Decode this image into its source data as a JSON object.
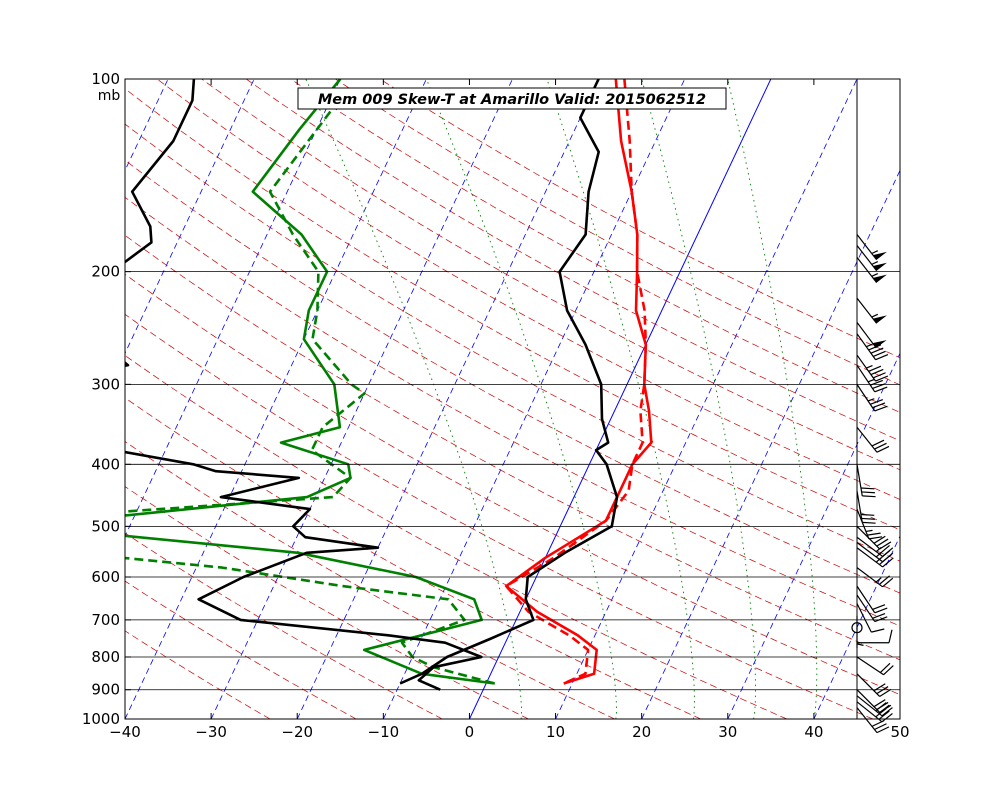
{
  "chart_data": {
    "type": "line",
    "title": "Mem 009  Skew-T at Amarillo   Valid: 2015062512",
    "xlabel": "",
    "ylabel": "",
    "pressure_unit": "mb",
    "skew_factor": 35,
    "xlim": [
      -40,
      50
    ],
    "plim": [
      1000,
      100
    ],
    "xticks": [
      -40,
      -30,
      -20,
      -10,
      0,
      10,
      20,
      30,
      40,
      50
    ],
    "pticks": [
      100,
      200,
      300,
      400,
      500,
      600,
      700,
      800,
      900,
      1000
    ],
    "isobars": [
      200,
      300,
      400,
      500,
      600,
      700,
      800,
      900
    ],
    "isotherms": [
      -100,
      -90,
      -80,
      -70,
      -60,
      -50,
      -40,
      -30,
      -20,
      -10,
      10,
      20,
      30,
      40,
      50
    ],
    "zero_isotherm": 0,
    "dry_adiabats_theta_K": [
      250,
      260,
      270,
      280,
      290,
      300,
      310,
      320,
      330,
      340,
      350,
      360,
      370,
      380,
      390,
      400,
      410,
      420,
      430,
      440
    ],
    "mixing_ratio_lines": [
      {
        "sfc_T": 6,
        "top_T": -54
      },
      {
        "sfc_T": 17,
        "top_T": -40
      },
      {
        "sfc_T": 26,
        "top_T": -26
      },
      {
        "sfc_T": 33,
        "top_T": -15
      },
      {
        "sfc_T": 40,
        "top_T": -5
      }
    ],
    "colors": {
      "temperature": "#ff0000",
      "dewpoint": "#008000",
      "member_profile": "#000000",
      "isobar": "#000000",
      "isotherm": "#0000ff",
      "dry_adiabat": "#cc0000",
      "mixing_ratio": "#008000"
    },
    "series": [
      {
        "role": "temperature",
        "style": "solid",
        "points": [
          [
            -18,
            100
          ],
          [
            -14,
            125
          ],
          [
            -10,
            150
          ],
          [
            -7,
            175
          ],
          [
            -5,
            200
          ],
          [
            -3,
            230
          ],
          [
            0,
            260
          ],
          [
            2,
            300
          ],
          [
            4,
            330
          ],
          [
            6,
            370
          ],
          [
            5,
            400
          ],
          [
            5,
            440
          ],
          [
            5,
            490
          ],
          [
            0,
            560
          ],
          [
            -3,
            620
          ],
          [
            2,
            680
          ],
          [
            8,
            740
          ],
          [
            11,
            780
          ],
          [
            12,
            850
          ],
          [
            9,
            880
          ]
        ]
      },
      {
        "role": "temperature",
        "style": "dashed",
        "points": [
          [
            -17,
            100
          ],
          [
            -13,
            125
          ],
          [
            -10,
            150
          ],
          [
            -7,
            175
          ],
          [
            -5,
            200
          ],
          [
            -2,
            230
          ],
          [
            0,
            260
          ],
          [
            2,
            300
          ],
          [
            3,
            330
          ],
          [
            5,
            370
          ],
          [
            5,
            400
          ],
          [
            6,
            440
          ],
          [
            5,
            490
          ],
          [
            1,
            560
          ],
          [
            -3,
            620
          ],
          [
            1,
            680
          ],
          [
            7,
            740
          ],
          [
            10,
            780
          ],
          [
            11,
            850
          ],
          [
            9,
            880
          ]
        ]
      },
      {
        "role": "dewpoint",
        "style": "solid",
        "points": [
          [
            -50,
            100
          ],
          [
            -52,
            120
          ],
          [
            -54,
            150
          ],
          [
            -46,
            175
          ],
          [
            -41,
            200
          ],
          [
            -41,
            230
          ],
          [
            -40,
            255
          ],
          [
            -34,
            300
          ],
          [
            -31,
            350
          ],
          [
            -37,
            370
          ],
          [
            -28,
            400
          ],
          [
            -27,
            420
          ],
          [
            -31,
            450
          ],
          [
            -63,
            500
          ],
          [
            -55,
            510
          ],
          [
            -29,
            550
          ],
          [
            -14,
            600
          ],
          [
            -6,
            650
          ],
          [
            -4,
            700
          ],
          [
            -16,
            780
          ],
          [
            -8,
            850
          ],
          [
            1,
            880
          ]
        ]
      },
      {
        "role": "dewpoint",
        "style": "dashed",
        "points": [
          [
            -49,
            108
          ],
          [
            -52,
            150
          ],
          [
            -47,
            175
          ],
          [
            -42,
            200
          ],
          [
            -40,
            230
          ],
          [
            -39,
            255
          ],
          [
            -32,
            300
          ],
          [
            -30,
            310
          ],
          [
            -33,
            350
          ],
          [
            -33,
            380
          ],
          [
            -27,
            420
          ],
          [
            -28,
            450
          ],
          [
            -57,
            480
          ],
          [
            -80,
            500
          ],
          [
            -78,
            510
          ],
          [
            -68,
            530
          ],
          [
            -37,
            580
          ],
          [
            -22,
            620
          ],
          [
            -9,
            650
          ],
          [
            -6,
            700
          ],
          [
            -12,
            760
          ],
          [
            -10,
            800
          ],
          [
            -7,
            830
          ],
          [
            1,
            880
          ]
        ]
      },
      {
        "role": "member_profile_1",
        "style": "solid",
        "points": [
          [
            -20,
            100
          ],
          [
            -20,
            115
          ],
          [
            -16,
            130
          ],
          [
            -15,
            150
          ],
          [
            -13,
            175
          ],
          [
            -14,
            200
          ],
          [
            -11,
            230
          ],
          [
            -7,
            260
          ],
          [
            -3,
            300
          ],
          [
            -1,
            340
          ],
          [
            1,
            370
          ],
          [
            0,
            380
          ],
          [
            2,
            400
          ],
          [
            5,
            450
          ],
          [
            6,
            500
          ],
          [
            2,
            550
          ],
          [
            -1,
            600
          ],
          [
            0,
            650
          ],
          [
            2,
            700
          ],
          [
            -2,
            750
          ],
          [
            -6,
            800
          ],
          [
            -8,
            850
          ],
          [
            -10,
            880
          ]
        ]
      },
      {
        "role": "member_profile_2",
        "style": "solid",
        "points": [
          [
            -67,
            100
          ],
          [
            -66,
            108
          ],
          [
            -66,
            125
          ],
          [
            -68,
            150
          ],
          [
            -64,
            170
          ],
          [
            -63,
            180
          ],
          [
            -66,
            200
          ],
          [
            -68,
            210
          ],
          [
            -65,
            225
          ],
          [
            -63,
            240
          ],
          [
            -63,
            255
          ],
          [
            -61,
            270
          ],
          [
            -59,
            280
          ],
          [
            -72,
            300
          ],
          [
            -70,
            350
          ],
          [
            -67,
            370
          ],
          [
            -56,
            380
          ],
          [
            -46,
            400
          ],
          [
            -43,
            410
          ],
          [
            -33,
            420
          ],
          [
            -41,
            450
          ],
          [
            -30,
            470
          ],
          [
            -31,
            500
          ],
          [
            -29,
            520
          ],
          [
            -20,
            540
          ],
          [
            -28,
            550
          ],
          [
            -34,
            600
          ],
          [
            -38,
            650
          ],
          [
            -32,
            700
          ],
          [
            -14,
            740
          ],
          [
            -7,
            760
          ],
          [
            -2,
            800
          ],
          [
            -7,
            830
          ],
          [
            -8,
            870
          ],
          [
            -5,
            900
          ]
        ]
      }
    ],
    "wind_barbs": [
      {
        "p": 175,
        "u": -35,
        "v": 45
      },
      {
        "p": 182,
        "u": -35,
        "v": 45
      },
      {
        "p": 190,
        "u": -35,
        "v": 45
      },
      {
        "p": 220,
        "u": -35,
        "v": 45
      },
      {
        "p": 240,
        "u": -30,
        "v": 40
      },
      {
        "p": 250,
        "u": -25,
        "v": 35
      },
      {
        "p": 270,
        "u": -25,
        "v": 35
      },
      {
        "p": 280,
        "u": -20,
        "v": 30
      },
      {
        "p": 300,
        "u": -20,
        "v": 30
      },
      {
        "p": 350,
        "u": -20,
        "v": 25
      },
      {
        "p": 400,
        "u": -5,
        "v": 30
      },
      {
        "p": 440,
        "u": -5,
        "v": 30
      },
      {
        "p": 470,
        "u": -10,
        "v": 25
      },
      {
        "p": 500,
        "u": -20,
        "v": 20
      },
      {
        "p": 520,
        "u": -20,
        "v": 15
      },
      {
        "p": 530,
        "u": -20,
        "v": 15
      },
      {
        "p": 540,
        "u": -20,
        "v": 15
      },
      {
        "p": 580,
        "u": -20,
        "v": 15
      },
      {
        "p": 620,
        "u": -10,
        "v": 15
      },
      {
        "p": 640,
        "u": -10,
        "v": 15
      },
      {
        "p": 660,
        "u": -5,
        "v": 10
      },
      {
        "p": 690,
        "u": 0,
        "v": 5
      },
      {
        "p": 720,
        "u": 0,
        "v": 0
      },
      {
        "p": 760,
        "u": -10,
        "v": 0
      },
      {
        "p": 800,
        "u": -15,
        "v": 10
      },
      {
        "p": 850,
        "u": -20,
        "v": 20
      },
      {
        "p": 900,
        "u": -20,
        "v": 20
      },
      {
        "p": 920,
        "u": -25,
        "v": 20
      },
      {
        "p": 940,
        "u": -25,
        "v": 20
      },
      {
        "p": 960,
        "u": -20,
        "v": 25
      }
    ]
  }
}
